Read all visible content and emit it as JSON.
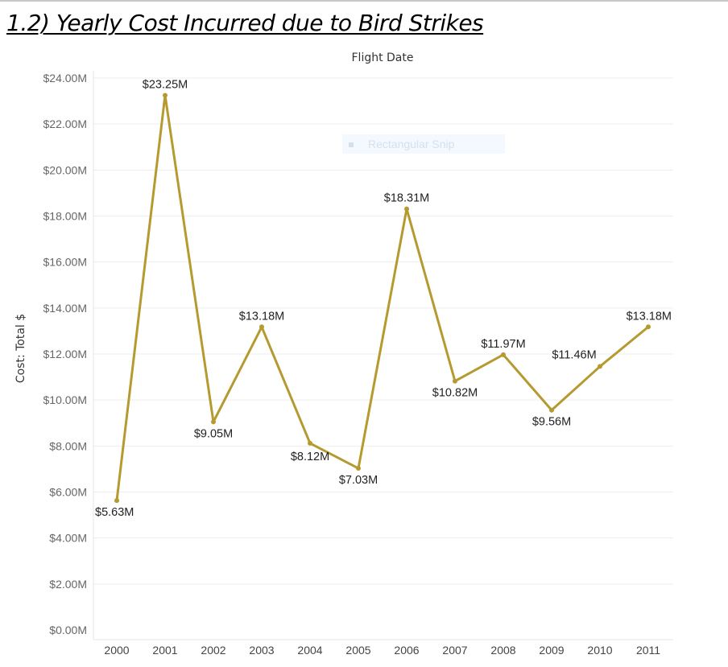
{
  "page": {
    "title": "1.2) Yearly Cost Incurred due to Bird Strikes",
    "header_label": "Flight Date",
    "overlay_text": "Rectangular Snip"
  },
  "chart_data": {
    "type": "line",
    "title": "1.2) Yearly Cost Incurred due to Bird Strikes",
    "xlabel": "Flight Date",
    "ylabel": "Cost: Total $",
    "categories": [
      "2000",
      "2001",
      "2002",
      "2003",
      "2004",
      "2005",
      "2006",
      "2007",
      "2008",
      "2009",
      "2010",
      "2011"
    ],
    "values": [
      5.63,
      23.25,
      9.05,
      13.18,
      8.12,
      7.03,
      18.31,
      10.82,
      11.97,
      9.56,
      11.46,
      13.18
    ],
    "value_labels": [
      "$5.63M",
      "$23.25M",
      "$9.05M",
      "$13.18M",
      "$8.12M",
      "$7.03M",
      "$18.31M",
      "$10.82M",
      "$11.97M",
      "$9.56M",
      "$11.46M",
      "$13.18M"
    ],
    "ylim": [
      0,
      24
    ],
    "y_ticks": [
      0,
      2,
      4,
      6,
      8,
      10,
      12,
      14,
      16,
      18,
      20,
      22,
      24
    ],
    "y_tick_labels": [
      "$0.00M",
      "$2.00M",
      "$4.00M",
      "$6.00M",
      "$8.00M",
      "$10.00M",
      "$12.00M",
      "$14.00M",
      "$16.00M",
      "$18.00M",
      "$20.00M",
      "$22.00M",
      "$24.00M"
    ],
    "grid": true,
    "legend": "none",
    "line_color": "#b59a30"
  }
}
